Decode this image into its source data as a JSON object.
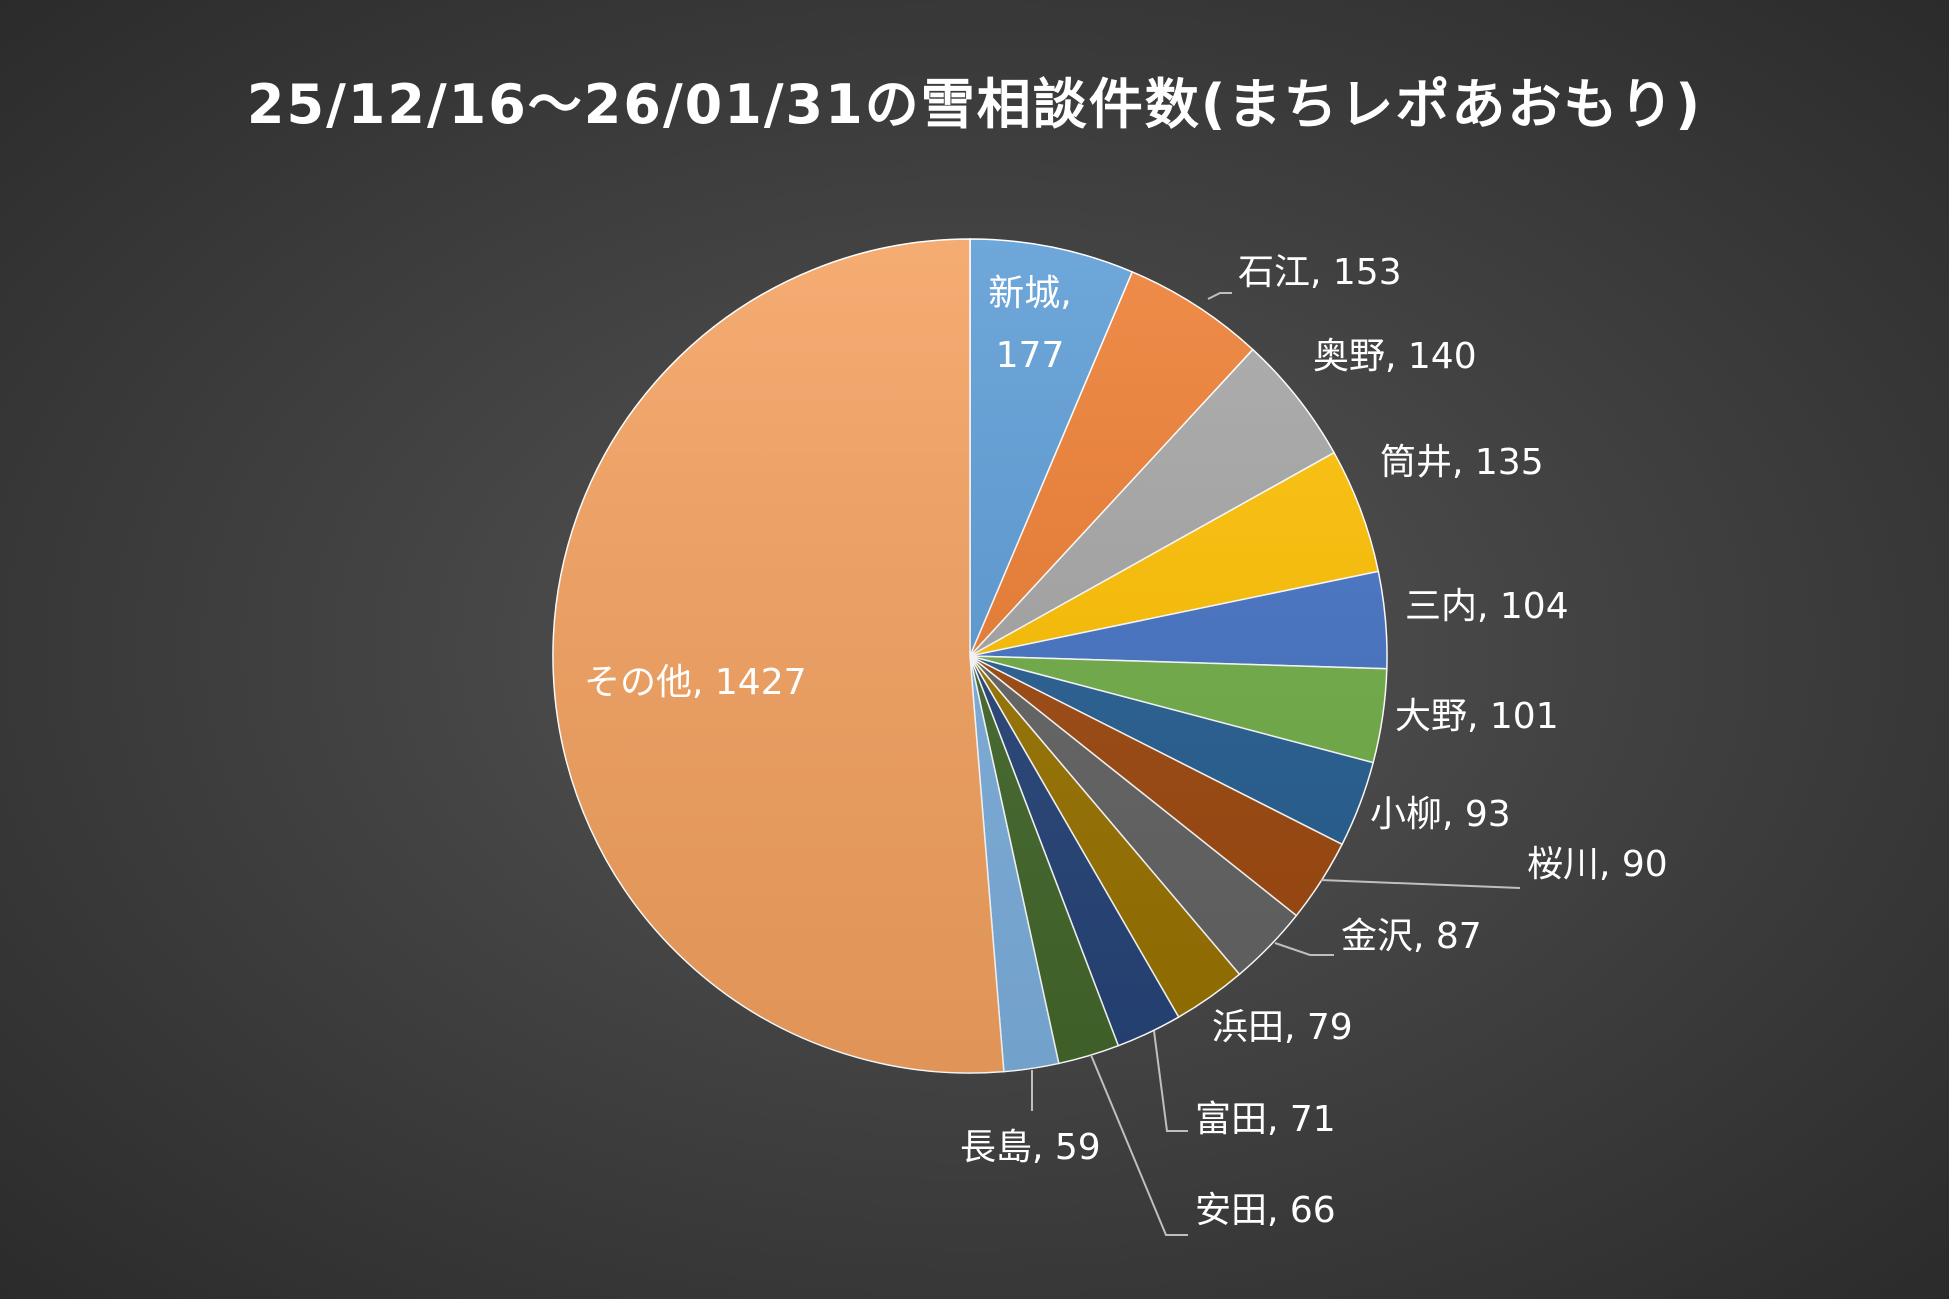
{
  "chart_data": {
    "type": "pie",
    "title": "25/12/16～26/01/31の雪相談件数(まちレポあおもり)",
    "slices": [
      {
        "label": "新城",
        "value": 177,
        "color": "#5b9bd5"
      },
      {
        "label": "石江",
        "value": 153,
        "color": "#ed7d31"
      },
      {
        "label": "奥野",
        "value": 140,
        "color": "#a5a5a5"
      },
      {
        "label": "筒井",
        "value": 135,
        "color": "#ffc000"
      },
      {
        "label": "三内",
        "value": 104,
        "color": "#4472c4"
      },
      {
        "label": "大野",
        "value": 101,
        "color": "#70ad47"
      },
      {
        "label": "小柳",
        "value": 93,
        "color": "#255e91"
      },
      {
        "label": "桜川",
        "value": 90,
        "color": "#9e480e"
      },
      {
        "label": "金沢",
        "value": 87,
        "color": "#636363"
      },
      {
        "label": "浜田",
        "value": 79,
        "color": "#997300"
      },
      {
        "label": "富田",
        "value": 71,
        "color": "#264478"
      },
      {
        "label": "安田",
        "value": 66,
        "color": "#43682b"
      },
      {
        "label": "長島",
        "value": 59,
        "color": "#7cafdd"
      },
      {
        "label": "その他",
        "value": 1427,
        "color": "#f4a15f"
      }
    ],
    "start_angle_deg": 0,
    "direction": "clockwise",
    "data_labels": "category, value",
    "legend": "none"
  }
}
